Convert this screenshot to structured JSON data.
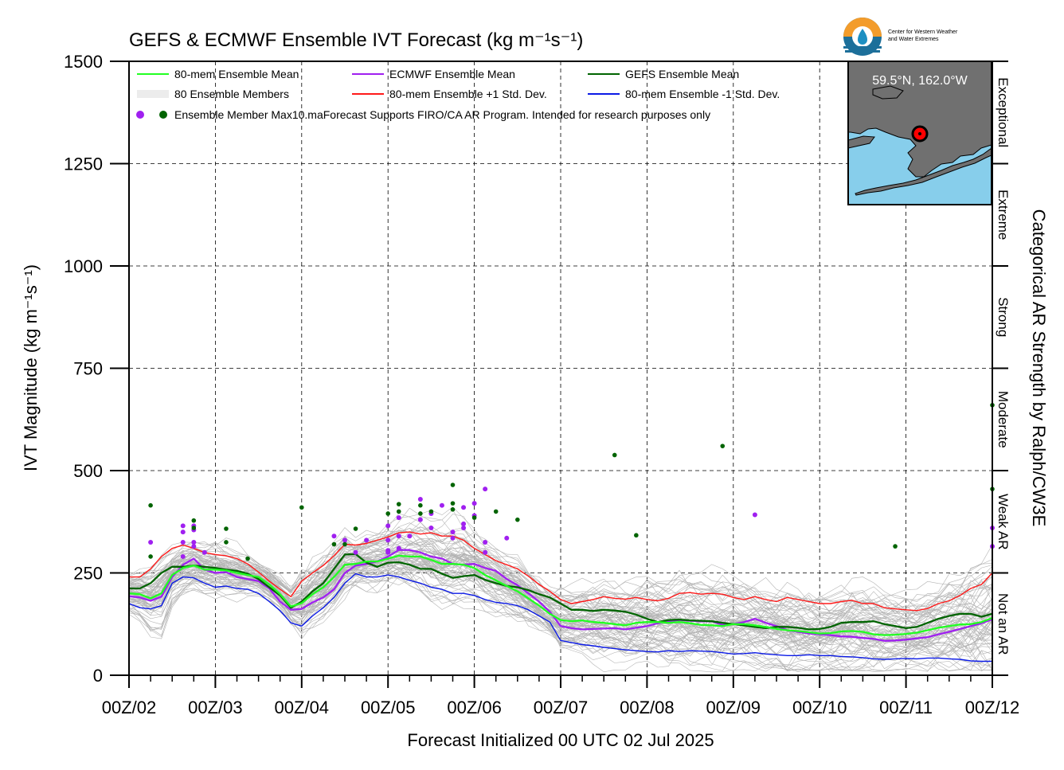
{
  "chart_data": {
    "type": "line",
    "title": "GEFS & ECMWF Ensemble IVT Forecast (kg m⁻¹s⁻¹)",
    "xlabel": "Forecast Initialized 00 UTC 02 Jul 2025",
    "ylabel": "IVT Magnitude (kg m⁻¹s⁻¹)",
    "right_axis_label": "Categorical AR Strength by Ralph/CW3E",
    "ylim": [
      0,
      1500
    ],
    "xlim": [
      0,
      240
    ],
    "x_unit": "forecast hour",
    "y_ticks": [
      0,
      250,
      500,
      750,
      1000,
      1250,
      1500
    ],
    "x_ticks": [
      {
        "x": 0,
        "label": "00Z/02"
      },
      {
        "x": 24,
        "label": "00Z/03"
      },
      {
        "x": 48,
        "label": "00Z/04"
      },
      {
        "x": 72,
        "label": "00Z/05"
      },
      {
        "x": 96,
        "label": "00Z/06"
      },
      {
        "x": 120,
        "label": "00Z/07"
      },
      {
        "x": 144,
        "label": "00Z/08"
      },
      {
        "x": 168,
        "label": "00Z/09"
      },
      {
        "x": 192,
        "label": "00Z/10"
      },
      {
        "x": 216,
        "label": "00Z/11"
      },
      {
        "x": 240,
        "label": "00Z/12"
      }
    ],
    "categories": [
      {
        "label": "Not an AR",
        "range": [
          0,
          250
        ]
      },
      {
        "label": "Weak AR",
        "range": [
          250,
          500
        ]
      },
      {
        "label": "Moderate",
        "range": [
          500,
          750
        ]
      },
      {
        "label": "Strong",
        "range": [
          750,
          1000
        ]
      },
      {
        "label": "Extreme",
        "range": [
          1000,
          1250
        ]
      },
      {
        "label": "Exceptional",
        "range": [
          1250,
          1500
        ]
      }
    ],
    "legend": {
      "placement": "top-left",
      "entries": [
        {
          "label": "80-mem Ensemble Mean",
          "color": "#22ff22"
        },
        {
          "label": "ECMWF Ensemble Mean",
          "color": "#a020f0"
        },
        {
          "label": "GEFS Ensemble Mean",
          "color": "#006400"
        },
        {
          "label": "80 Ensemble Members",
          "color": "#b4b4b4"
        },
        {
          "label": "80-mem Ensemble +1 Std. Dev.",
          "color": "#ff1a1a"
        },
        {
          "label": "80-mem Ensemble -1 Std. Dev.",
          "color": "#0b1ae6"
        }
      ],
      "max_label": "Ensemble Member Max",
      "disclaimer": "10.maForecast Supports FIRO/CA AR Program. Intended for research purposes only"
    },
    "x": [
      0,
      3,
      6,
      9,
      12,
      15,
      18,
      21,
      24,
      27,
      30,
      33,
      36,
      39,
      42,
      45,
      48,
      51,
      54,
      57,
      60,
      63,
      66,
      69,
      72,
      75,
      78,
      81,
      84,
      87,
      90,
      93,
      96,
      99,
      102,
      105,
      108,
      111,
      114,
      117,
      120,
      123,
      126,
      129,
      132,
      135,
      138,
      141,
      144,
      147,
      150,
      153,
      156,
      159,
      162,
      165,
      168,
      171,
      174,
      177,
      180,
      183,
      186,
      189,
      192,
      195,
      198,
      201,
      204,
      207,
      210,
      213,
      216,
      219,
      222,
      225,
      228,
      231,
      234,
      237,
      240
    ],
    "series": [
      {
        "name": "80-mem Ensemble Mean",
        "color": "#22ff22",
        "width": 2.3,
        "values": [
          200,
          198,
          188,
          200,
          245,
          262,
          268,
          258,
          258,
          256,
          250,
          245,
          240,
          222,
          198,
          168,
          176,
          198,
          215,
          240,
          270,
          272,
          278,
          278,
          285,
          292,
          290,
          290,
          282,
          272,
          272,
          270,
          262,
          245,
          232,
          218,
          205,
          188,
          170,
          150,
          135,
          132,
          134,
          130,
          128,
          125,
          122,
          128,
          130,
          130,
          128,
          130,
          127,
          123,
          122,
          120,
          125,
          125,
          122,
          118,
          113,
          110,
          108,
          105,
          102,
          103,
          107,
          108,
          106,
          100,
          98,
          99,
          101,
          104,
          110,
          116,
          120,
          124,
          125,
          130,
          140
        ]
      },
      {
        "name": "ECMWF Ensemble Mean",
        "color": "#a020f0",
        "width": 2.3,
        "values": [
          193,
          190,
          182,
          192,
          240,
          270,
          285,
          258,
          250,
          252,
          240,
          235,
          230,
          212,
          180,
          160,
          162,
          178,
          190,
          210,
          250,
          268,
          272,
          278,
          290,
          306,
          306,
          300,
          290,
          285,
          272,
          270,
          272,
          262,
          255,
          235,
          220,
          200,
          180,
          155,
          120,
          115,
          112,
          113,
          114,
          115,
          112,
          116,
          120,
          127,
          132,
          135,
          133,
          132,
          132,
          123,
          125,
          130,
          138,
          128,
          120,
          110,
          106,
          102,
          100,
          98,
          95,
          94,
          91,
          89,
          84,
          85,
          87,
          90,
          93,
          100,
          106,
          113,
          120,
          127,
          137
        ]
      },
      {
        "name": "GEFS Ensemble Mean",
        "color": "#006400",
        "width": 2.3,
        "values": [
          212,
          212,
          225,
          250,
          265,
          265,
          268,
          265,
          262,
          258,
          255,
          248,
          235,
          215,
          195,
          165,
          180,
          205,
          225,
          260,
          295,
          296,
          275,
          265,
          275,
          276,
          270,
          260,
          260,
          248,
          238,
          242,
          245,
          233,
          225,
          218,
          215,
          208,
          198,
          190,
          175,
          160,
          160,
          157,
          160,
          158,
          155,
          148,
          138,
          130,
          135,
          136,
          134,
          133,
          132,
          128,
          125,
          122,
          118,
          115,
          118,
          118,
          116,
          112,
          113,
          118,
          128,
          130,
          130,
          132,
          125,
          120,
          115,
          118,
          128,
          138,
          145,
          150,
          150,
          143,
          150
        ]
      },
      {
        "name": "80-mem Ensemble +1 Std. Dev.",
        "color": "#ff1a1a",
        "width": 1.4,
        "values": [
          240,
          240,
          260,
          290,
          310,
          318,
          310,
          300,
          295,
          292,
          285,
          272,
          252,
          230,
          210,
          192,
          230,
          250,
          268,
          292,
          320,
          318,
          322,
          330,
          338,
          348,
          350,
          345,
          348,
          340,
          340,
          330,
          310,
          295,
          280,
          270,
          260,
          242,
          222,
          205,
          185,
          175,
          180,
          185,
          192,
          188,
          186,
          190,
          185,
          182,
          188,
          200,
          202,
          198,
          200,
          198,
          190,
          185,
          192,
          185,
          180,
          190,
          185,
          180,
          175,
          175,
          180,
          183,
          175,
          175,
          165,
          162,
          160,
          158,
          163,
          175,
          182,
          195,
          212,
          222,
          250
        ]
      },
      {
        "name": "80-mem Ensemble -1 Std. Dev.",
        "color": "#0b1ae6",
        "width": 1.4,
        "values": [
          175,
          165,
          162,
          170,
          225,
          240,
          238,
          225,
          215,
          218,
          212,
          210,
          200,
          180,
          158,
          128,
          120,
          145,
          165,
          190,
          225,
          248,
          240,
          240,
          245,
          240,
          232,
          225,
          215,
          210,
          200,
          200,
          195,
          185,
          178,
          175,
          170,
          160,
          145,
          130,
          85,
          80,
          75,
          72,
          68,
          65,
          62,
          60,
          58,
          57,
          60,
          58,
          60,
          59,
          58,
          55,
          52,
          53,
          55,
          52,
          50,
          48,
          48,
          50,
          48,
          48,
          46,
          45,
          43,
          40,
          39,
          40,
          41,
          40,
          42,
          42,
          40,
          39,
          35,
          34,
          34
        ]
      }
    ],
    "members_count": 80,
    "max_points": [
      {
        "x": 6,
        "y": 325,
        "ens": "ECMWF"
      },
      {
        "x": 15,
        "y": 365,
        "ens": "ECMWF"
      },
      {
        "x": 15,
        "y": 350,
        "ens": "ECMWF"
      },
      {
        "x": 15,
        "y": 325,
        "ens": "ECMWF"
      },
      {
        "x": 15,
        "y": 290,
        "ens": "ECMWF"
      },
      {
        "x": 18,
        "y": 365,
        "ens": "ECMWF"
      },
      {
        "x": 18,
        "y": 355,
        "ens": "ECMWF"
      },
      {
        "x": 18,
        "y": 325,
        "ens": "ECMWF"
      },
      {
        "x": 18,
        "y": 315,
        "ens": "ECMWF"
      },
      {
        "x": 21,
        "y": 300,
        "ens": "ECMWF"
      },
      {
        "x": 57,
        "y": 340,
        "ens": "ECMWF"
      },
      {
        "x": 60,
        "y": 330,
        "ens": "ECMWF"
      },
      {
        "x": 63,
        "y": 300,
        "ens": "ECMWF"
      },
      {
        "x": 66,
        "y": 330,
        "ens": "ECMWF"
      },
      {
        "x": 72,
        "y": 365,
        "ens": "ECMWF"
      },
      {
        "x": 72,
        "y": 330,
        "ens": "ECMWF"
      },
      {
        "x": 72,
        "y": 305,
        "ens": "ECMWF"
      },
      {
        "x": 72,
        "y": 300,
        "ens": "ECMWF"
      },
      {
        "x": 75,
        "y": 385,
        "ens": "ECMWF"
      },
      {
        "x": 75,
        "y": 340,
        "ens": "ECMWF"
      },
      {
        "x": 75,
        "y": 310,
        "ens": "ECMWF"
      },
      {
        "x": 78,
        "y": 340,
        "ens": "ECMWF"
      },
      {
        "x": 81,
        "y": 430,
        "ens": "ECMWF"
      },
      {
        "x": 81,
        "y": 380,
        "ens": "ECMWF"
      },
      {
        "x": 84,
        "y": 395,
        "ens": "ECMWF"
      },
      {
        "x": 84,
        "y": 360,
        "ens": "ECMWF"
      },
      {
        "x": 87,
        "y": 415,
        "ens": "ECMWF"
      },
      {
        "x": 90,
        "y": 350,
        "ens": "ECMWF"
      },
      {
        "x": 90,
        "y": 335,
        "ens": "ECMWF"
      },
      {
        "x": 93,
        "y": 410,
        "ens": "ECMWF"
      },
      {
        "x": 93,
        "y": 370,
        "ens": "ECMWF"
      },
      {
        "x": 93,
        "y": 360,
        "ens": "ECMWF"
      },
      {
        "x": 96,
        "y": 420,
        "ens": "ECMWF"
      },
      {
        "x": 96,
        "y": 390,
        "ens": "ECMWF"
      },
      {
        "x": 99,
        "y": 455,
        "ens": "ECMWF"
      },
      {
        "x": 99,
        "y": 325,
        "ens": "ECMWF"
      },
      {
        "x": 99,
        "y": 300,
        "ens": "ECMWF"
      },
      {
        "x": 105,
        "y": 335,
        "ens": "ECMWF"
      },
      {
        "x": 174,
        "y": 392,
        "ens": "ECMWF"
      },
      {
        "x": 240,
        "y": 360,
        "ens": "ECMWF"
      },
      {
        "x": 240,
        "y": 315,
        "ens": "ECMWF"
      },
      {
        "x": 6,
        "y": 415,
        "ens": "GEFS"
      },
      {
        "x": 6,
        "y": 290,
        "ens": "GEFS"
      },
      {
        "x": 18,
        "y": 378,
        "ens": "GEFS"
      },
      {
        "x": 18,
        "y": 360,
        "ens": "GEFS"
      },
      {
        "x": 27,
        "y": 358,
        "ens": "GEFS"
      },
      {
        "x": 27,
        "y": 325,
        "ens": "GEFS"
      },
      {
        "x": 33,
        "y": 285,
        "ens": "GEFS"
      },
      {
        "x": 48,
        "y": 410,
        "ens": "GEFS"
      },
      {
        "x": 57,
        "y": 320,
        "ens": "GEFS"
      },
      {
        "x": 60,
        "y": 320,
        "ens": "GEFS"
      },
      {
        "x": 63,
        "y": 358,
        "ens": "GEFS"
      },
      {
        "x": 72,
        "y": 395,
        "ens": "GEFS"
      },
      {
        "x": 75,
        "y": 418,
        "ens": "GEFS"
      },
      {
        "x": 75,
        "y": 400,
        "ens": "GEFS"
      },
      {
        "x": 81,
        "y": 415,
        "ens": "GEFS"
      },
      {
        "x": 81,
        "y": 395,
        "ens": "GEFS"
      },
      {
        "x": 84,
        "y": 400,
        "ens": "GEFS"
      },
      {
        "x": 90,
        "y": 465,
        "ens": "GEFS"
      },
      {
        "x": 90,
        "y": 420,
        "ens": "GEFS"
      },
      {
        "x": 90,
        "y": 405,
        "ens": "GEFS"
      },
      {
        "x": 96,
        "y": 385,
        "ens": "GEFS"
      },
      {
        "x": 102,
        "y": 400,
        "ens": "GEFS"
      },
      {
        "x": 108,
        "y": 380,
        "ens": "GEFS"
      },
      {
        "x": 135,
        "y": 538,
        "ens": "GEFS"
      },
      {
        "x": 141,
        "y": 342,
        "ens": "GEFS"
      },
      {
        "x": 165,
        "y": 560,
        "ens": "GEFS"
      },
      {
        "x": 213,
        "y": 315,
        "ens": "GEFS"
      },
      {
        "x": 240,
        "y": 660,
        "ens": "GEFS"
      },
      {
        "x": 240,
        "y": 455,
        "ens": "GEFS"
      }
    ],
    "inset_map": {
      "location": "59.5°N, 162.0°W",
      "water_color": "#87ceeb",
      "land_color": "#707070"
    },
    "grid": true
  },
  "logo": {
    "line1": "Center for Western Weather",
    "line2": "and Water Extremes"
  }
}
